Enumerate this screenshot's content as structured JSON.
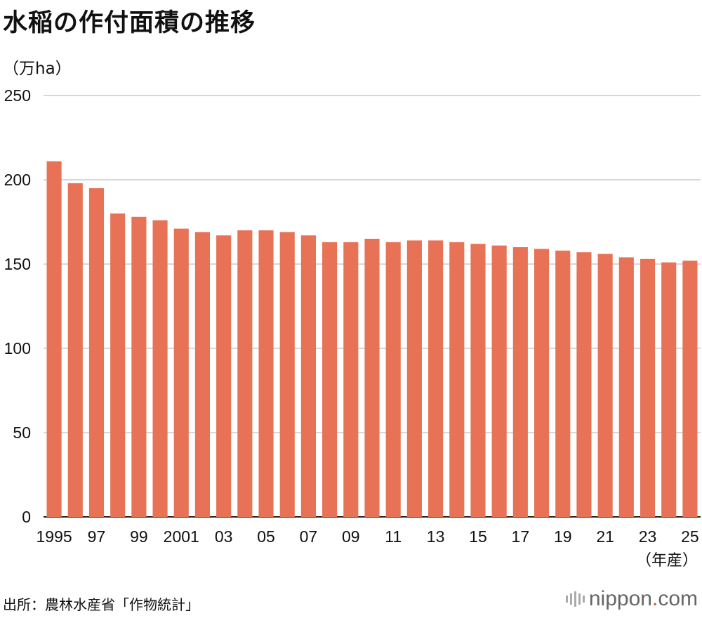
{
  "title": "水稲の作付面積の推移",
  "unit_label": "（万ha）",
  "x_unit_label": "（年産）",
  "source": "出所：農林水産省「作物統計」",
  "logo": {
    "name": "nippon",
    "dot": ".",
    "suffix": "com"
  },
  "colors": {
    "bar": "#e87256",
    "grid": "#cccccc",
    "axis": "#222222"
  },
  "chart_data": {
    "type": "bar",
    "categories": [
      "1995",
      "1996",
      "1997",
      "1998",
      "1999",
      "2000",
      "2001",
      "2002",
      "2003",
      "2004",
      "2005",
      "2006",
      "2007",
      "2008",
      "2009",
      "2010",
      "2011",
      "2012",
      "2013",
      "2014",
      "2015",
      "2016",
      "2017",
      "2018",
      "2019",
      "2020",
      "2021",
      "2022",
      "2023",
      "2024",
      "2025"
    ],
    "values": [
      211,
      198,
      195,
      180,
      178,
      176,
      171,
      169,
      167,
      170,
      170,
      169,
      167,
      163,
      163,
      165,
      163,
      164,
      164,
      163,
      162,
      161,
      160,
      159,
      158,
      157,
      156,
      154,
      153,
      151,
      152
    ],
    "tick_labels": [
      "1995",
      "",
      "97",
      "",
      "99",
      "",
      "2001",
      "",
      "03",
      "",
      "05",
      "",
      "07",
      "",
      "09",
      "",
      "11",
      "",
      "13",
      "",
      "15",
      "",
      "17",
      "",
      "19",
      "",
      "21",
      "",
      "23",
      "",
      "25"
    ],
    "y_ticks": [
      0,
      50,
      100,
      150,
      200,
      250
    ],
    "ylim": [
      0,
      250
    ],
    "grid": true,
    "legend": "none"
  }
}
